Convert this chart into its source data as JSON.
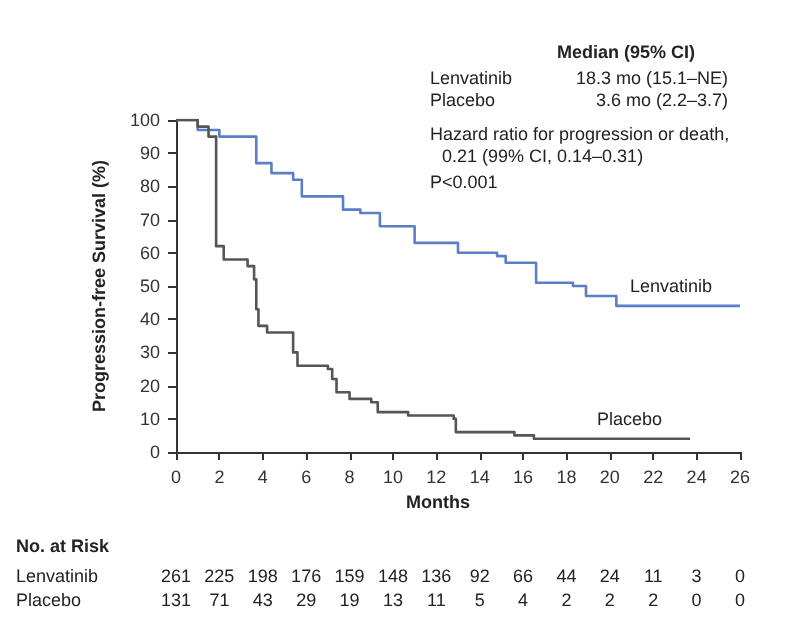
{
  "chart_data": {
    "type": "step",
    "xlabel": "Months",
    "ylabel": "Progression-free Survival (%)",
    "xlim": [
      0,
      26
    ],
    "xticks": [
      0,
      2,
      4,
      6,
      8,
      10,
      12,
      14,
      16,
      18,
      20,
      22,
      24,
      26
    ],
    "ylim": [
      0,
      100
    ],
    "yticks": [
      0,
      10,
      20,
      30,
      40,
      50,
      60,
      70,
      80,
      90,
      100
    ],
    "grid": false,
    "legend": false,
    "series": [
      {
        "name": "Lenvatinib",
        "color": "#5b7fc4",
        "x": [
          0,
          1,
          2,
          3.7,
          4.4,
          5.4,
          5.8,
          7.7,
          8.5,
          9.4,
          11,
          13,
          14.8,
          15.2,
          16.6,
          18.3,
          18.9,
          20.3,
          26
        ],
        "values": [
          100,
          97,
          95,
          87,
          84,
          82,
          77,
          73,
          72,
          68,
          63,
          60,
          59,
          57,
          51,
          50,
          47,
          44,
          44
        ]
      },
      {
        "name": "Placebo",
        "color": "#555555",
        "x": [
          0,
          1,
          1.5,
          1.85,
          2.2,
          3.3,
          3.6,
          3.7,
          3.8,
          4.2,
          5.4,
          5.6,
          7.0,
          7.2,
          7.4,
          8.0,
          9.0,
          9.3,
          10.7,
          12.8,
          12.9,
          15.6,
          16.5,
          23.7
        ],
        "values": [
          100,
          98,
          95,
          62,
          58,
          56,
          52,
          43,
          38,
          36,
          30,
          26,
          25,
          22,
          18,
          16,
          15,
          12,
          11,
          10,
          6,
          5,
          4,
          4
        ]
      }
    ],
    "annotations": [
      "Median (95% CI)",
      "Lenvatinib",
      "18.3 mo (15.1–NE)",
      "Placebo",
      "3.6 mo (2.2–3.7)",
      "Hazard ratio for progression or death,",
      "0.21 (99% CI, 0.14–0.31)",
      "P<0.001",
      "No. at Risk",
      "Lenvatinib 261 225 198 176 159 148 136 92 66 44 24 11 3 0",
      "Placebo 131 71 43 29 19 13 11 5 4 2 2 2 0 0"
    ]
  }
}
